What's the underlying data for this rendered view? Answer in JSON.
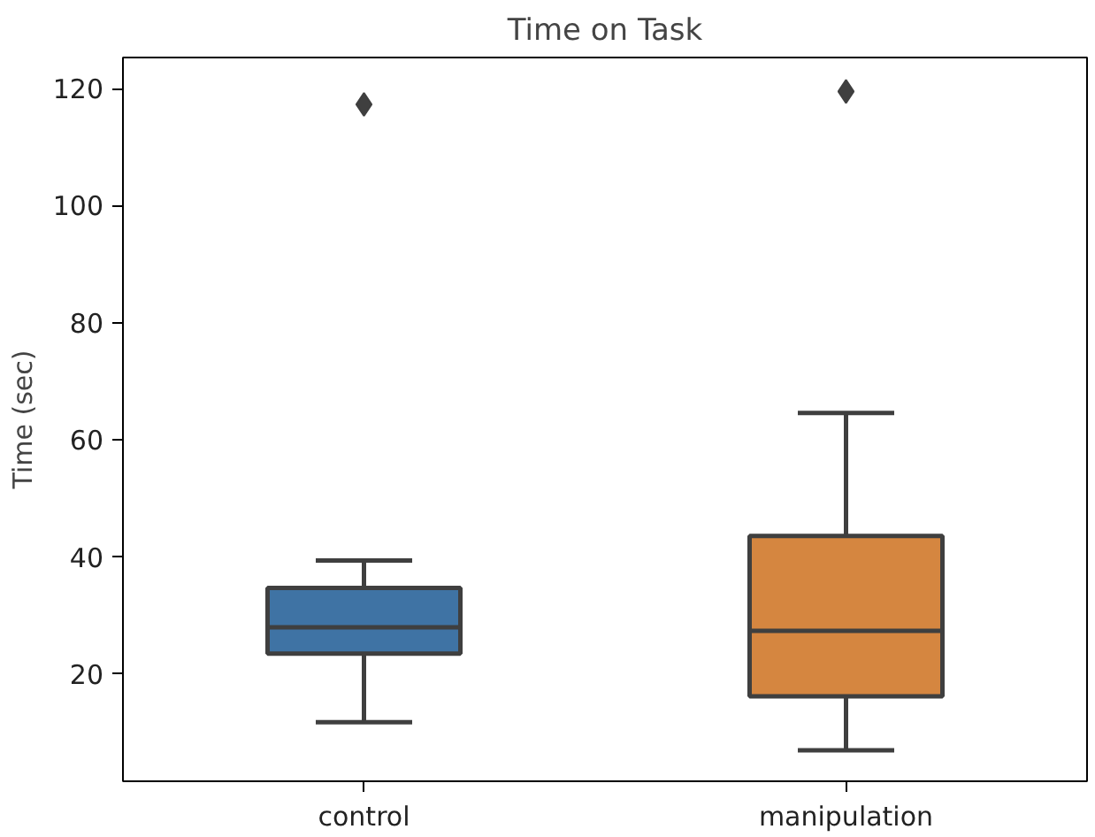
{
  "chart_data": {
    "type": "box",
    "title": "Time on Task",
    "ylabel": "Time (sec)",
    "categories": [
      "control",
      "manipulation"
    ],
    "colors": [
      "#3f73a4",
      "#d58640"
    ],
    "boxes": [
      {
        "low": 11.8,
        "q1": 23.5,
        "median": 28.0,
        "q3": 34.7,
        "high": 39.4,
        "outliers": [
          117.3
        ]
      },
      {
        "low": 7.0,
        "q1": 16.2,
        "median": 27.4,
        "q3": 43.6,
        "high": 64.6,
        "outliers": [
          119.5
        ]
      }
    ],
    "ylim": [
      1.7,
      125.3
    ],
    "yticks": [
      20,
      40,
      60,
      80,
      100,
      120
    ],
    "grid": false,
    "marker": "diamond"
  }
}
